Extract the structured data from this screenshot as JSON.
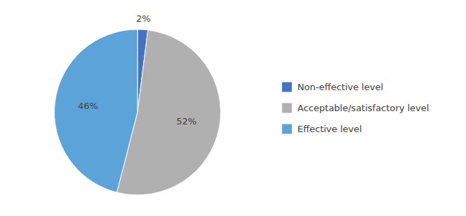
{
  "chart_data": {
    "type": "pie",
    "categories": [
      "Non-effective level",
      "Acceptable/satisfactory level",
      "Effective level"
    ],
    "values": [
      2,
      52,
      46
    ],
    "value_labels": [
      "2%",
      "52%",
      "46%"
    ],
    "colors": [
      "#4472c4",
      "#b0b0b0",
      "#5ba3d9"
    ],
    "data_labels": true,
    "legend": "right"
  }
}
